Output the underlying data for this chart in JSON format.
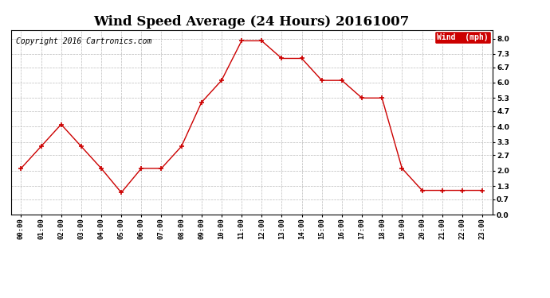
{
  "title": "Wind Speed Average (24 Hours) 20161007",
  "copyright_text": "Copyright 2016 Cartronics.com",
  "legend_label": "Wind  (mph)",
  "hours": [
    "00:00",
    "01:00",
    "02:00",
    "03:00",
    "04:00",
    "05:00",
    "06:00",
    "07:00",
    "08:00",
    "09:00",
    "10:00",
    "11:00",
    "12:00",
    "13:00",
    "14:00",
    "15:00",
    "16:00",
    "17:00",
    "18:00",
    "19:00",
    "20:00",
    "21:00",
    "22:00",
    "23:00"
  ],
  "wind_values": [
    2.1,
    3.1,
    4.1,
    3.1,
    2.1,
    1.0,
    2.1,
    2.1,
    3.1,
    5.1,
    6.1,
    7.9,
    7.9,
    7.1,
    7.1,
    6.1,
    6.1,
    5.3,
    5.3,
    2.1,
    1.1,
    1.1,
    1.1,
    1.1
  ],
  "line_color": "#cc0000",
  "marker": "+",
  "background_color": "#ffffff",
  "grid_color": "#bbbbbb",
  "yticks": [
    0.0,
    0.7,
    1.3,
    2.0,
    2.7,
    3.3,
    4.0,
    4.7,
    5.3,
    6.0,
    6.7,
    7.3,
    8.0
  ],
  "ylim": [
    0.0,
    8.4
  ],
  "legend_bg": "#cc0000",
  "legend_text_color": "#ffffff",
  "title_fontsize": 12,
  "tick_fontsize": 6.5,
  "copyright_fontsize": 7
}
